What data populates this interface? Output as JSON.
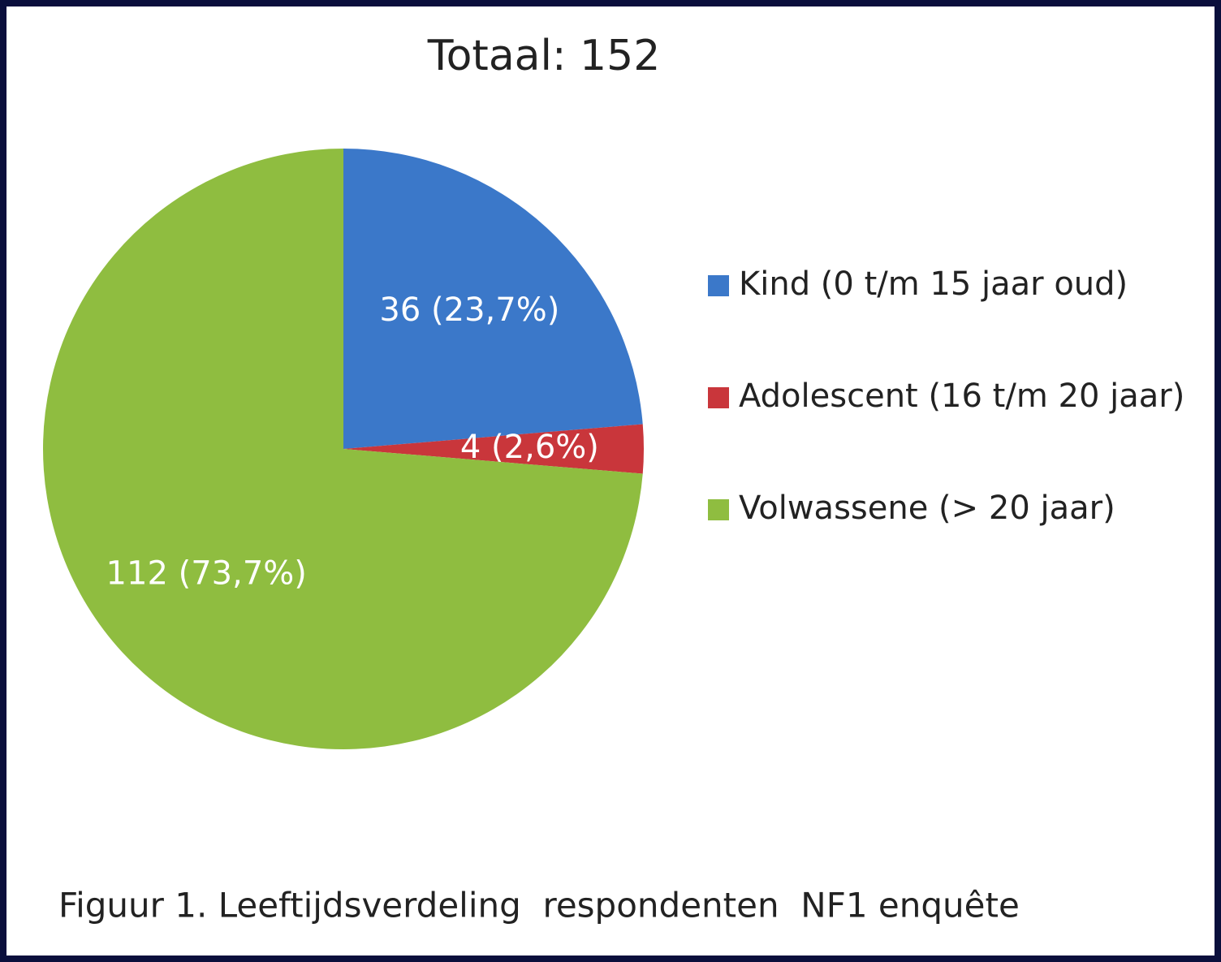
{
  "chart_data": {
    "type": "pie",
    "title": "Totaal: 152",
    "categories": [
      "Kind (0 t/m 15 jaar oud)",
      "Adolescent (16 t/m 20 jaar)",
      "Volwassene (> 20 jaar)"
    ],
    "values": [
      36,
      4,
      112
    ],
    "value_labels": [
      "36 (23,7%)",
      "4 (2,6%)",
      "112 (73,7%)"
    ],
    "colors": [
      "#3b78c9",
      "#c9363b",
      "#8fbd40"
    ],
    "legend": "right",
    "caption": "Figuur 1. Leeftijdsverdeling  respondenten  NF1 enquête"
  }
}
